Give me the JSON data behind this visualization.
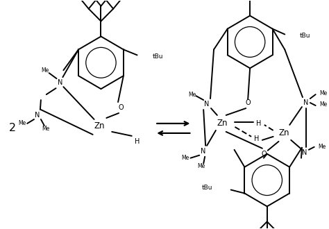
{
  "background_color": "#ffffff",
  "figure_width": 4.74,
  "figure_height": 3.3,
  "dpi": 100,
  "line_color": "#000000",
  "line_width": 1.4,
  "font_size": 7.0,
  "bold_font_size": 8.5,
  "xlim": [
    0,
    474
  ],
  "ylim": [
    0,
    330
  ]
}
